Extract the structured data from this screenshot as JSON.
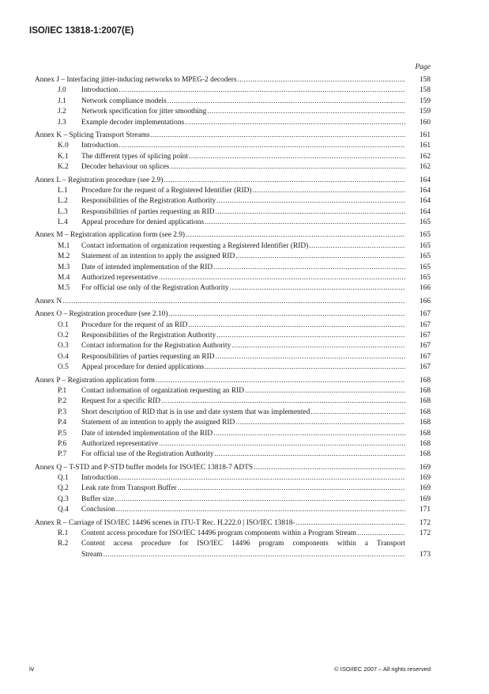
{
  "header": {
    "title": "ISO/IEC 13818-1:2007(E)"
  },
  "toc": {
    "page_label": "Page",
    "sections": [
      {
        "title": "Annex J – Interfacing jitter-inducing networks to MPEG-2 decoders",
        "page": "158",
        "subs": [
          {
            "num": "J.0",
            "title": "Introduction",
            "page": "158"
          },
          {
            "num": "J.1",
            "title": "Network compliance models",
            "page": "159"
          },
          {
            "num": "J.2",
            "title": "Network specification for jitter smoothing",
            "page": "159"
          },
          {
            "num": "J.3",
            "title": "Example decoder implementations",
            "page": "160"
          }
        ]
      },
      {
        "title": "Annex K – Splicing Transport Streams",
        "page": "161",
        "subs": [
          {
            "num": "K.0",
            "title": "Introduction",
            "page": "161"
          },
          {
            "num": "K.1",
            "title": "The different types of splicing point",
            "page": "162"
          },
          {
            "num": "K.2",
            "title": "Decoder behaviour on splices",
            "page": "162"
          }
        ]
      },
      {
        "title": "Annex L – Registration procedure (see 2.9)",
        "page": "164",
        "subs": [
          {
            "num": "L.1",
            "title": "Procedure for the request of a Registered Identifier (RID)",
            "page": "164"
          },
          {
            "num": "L.2",
            "title": "Responsibilities of the Registration Authority",
            "page": "164"
          },
          {
            "num": "L.3",
            "title": "Responsibilities of parties requesting an RID",
            "page": "164"
          },
          {
            "num": "L.4",
            "title": "Appeal procedure for denied applications",
            "page": "165"
          }
        ]
      },
      {
        "title": "Annex M – Registration application form (see 2.9)",
        "page": "165",
        "subs": [
          {
            "num": "M.1",
            "title": "Contact information of organization requesting a Registered Identifier (RID)",
            "page": "165"
          },
          {
            "num": "M.2",
            "title": "Statement of an intention to apply the assigned RID",
            "page": "165"
          },
          {
            "num": "M.3",
            "title": "Date of intended implementation of the RID",
            "page": "165"
          },
          {
            "num": "M.4",
            "title": "Authorized representative",
            "page": "165"
          },
          {
            "num": "M.5",
            "title": "For official use only of the Registration Authority",
            "page": "166"
          }
        ]
      },
      {
        "title": "Annex N",
        "page": "166",
        "subs": []
      },
      {
        "title": "Annex O – Registration procedure (see 2.10)",
        "page": "167",
        "subs": [
          {
            "num": "O.1",
            "title": "Procedure for the request of an RID",
            "page": "167"
          },
          {
            "num": "O.2",
            "title": "Responsibilities of the Registration Authority",
            "page": "167"
          },
          {
            "num": "O.3",
            "title": "Contact information for the Registration Authority",
            "page": "167"
          },
          {
            "num": "O.4",
            "title": "Responsibilities of parties requesting an RID",
            "page": "167"
          },
          {
            "num": "O.5",
            "title": "Appeal procedure for denied applications",
            "page": "167"
          }
        ]
      },
      {
        "title": "Annex P – Registration application form",
        "page": "168",
        "subs": [
          {
            "num": "P.1",
            "title": "Contact information of organization requesting an RID",
            "page": "168"
          },
          {
            "num": "P.2",
            "title": "Request for a specific RID",
            "page": "168"
          },
          {
            "num": "P.3",
            "title": "Short description of RID that is in use and date system that was implemented",
            "page": "168"
          },
          {
            "num": "P.4",
            "title": "Statement of an intention to apply the assigned RID",
            "page": "168"
          },
          {
            "num": "P.5",
            "title": "Date of intended implementation of the RID",
            "page": "168"
          },
          {
            "num": "P.6",
            "title": "Authorized representative",
            "page": "168"
          },
          {
            "num": "P.7",
            "title": "For official use of the Registration Authority",
            "page": "168"
          }
        ]
      },
      {
        "title": "Annex Q – T-STD and P-STD buffer models for ISO/IEC 13818-7 ADTS",
        "page": "169",
        "subs": [
          {
            "num": "Q.1",
            "title": "Introduction",
            "page": "169"
          },
          {
            "num": "Q.2",
            "title": "Leak rate from Transport Buffer",
            "page": "169"
          },
          {
            "num": "Q.3",
            "title": "Buffer size",
            "page": "169"
          },
          {
            "num": "Q.4",
            "title": "Conclusion",
            "page": "171"
          }
        ]
      },
      {
        "title": "Annex R – Carriage of ISO/IEC 14496 scenes in ITU-T Rec. H.222.0 | ISO/IEC 13818-",
        "page": "172",
        "subs": [
          {
            "num": "R.1",
            "title": "Content access procedure for ISO/IEC 14496 program components within a Program Stream",
            "page": "172"
          },
          {
            "num": "R.2",
            "title": "Content access procedure for ISO/IEC 14496 program components within a Transport",
            "title_cont": "Stream",
            "page": "173"
          }
        ]
      }
    ]
  },
  "footer": {
    "page_number": "iv",
    "copyright": "© ISO/IEC 2007 – All rights reserved"
  }
}
